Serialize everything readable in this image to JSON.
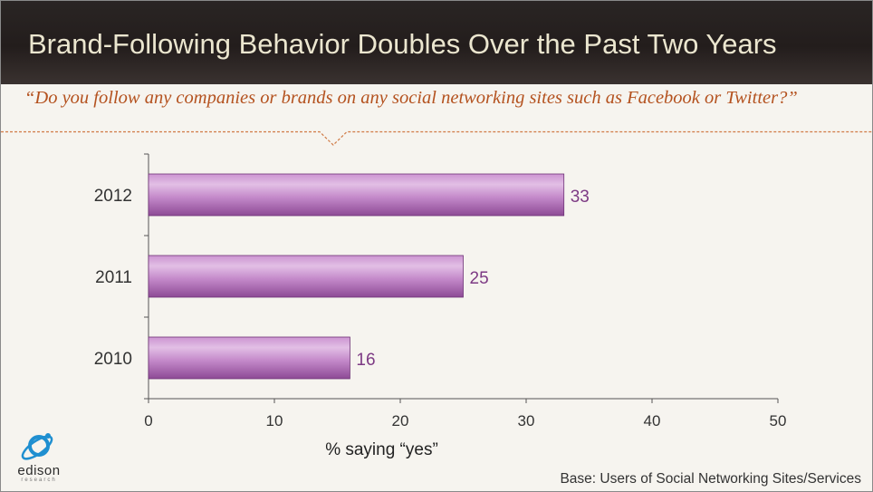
{
  "header": {
    "title": "Brand-Following Behavior Doubles Over the Past Two Years"
  },
  "question": "“Do you follow any companies or brands on any social networking sites such as Facebook or Twitter?”",
  "chart_data": {
    "type": "bar",
    "orientation": "horizontal",
    "categories": [
      "2012",
      "2011",
      "2010"
    ],
    "values": [
      33,
      25,
      16
    ],
    "data_labels": [
      "33",
      "25",
      "16"
    ],
    "xlabel": "% saying “yes”",
    "ylabel": "",
    "xlim": [
      0,
      50
    ],
    "xticks": [
      "0",
      "10",
      "20",
      "30",
      "40",
      "50"
    ],
    "grid": false,
    "bar_color": "#b877bf",
    "label_color": "#7d3a84"
  },
  "footer": {
    "base_note": "Base: Users of Social Networking Sites/Services"
  },
  "logo": {
    "name": "edison",
    "tagline": "research",
    "icon": "edison-orbit-logo",
    "color": "#1f8fd0"
  },
  "colors": {
    "header_bg": "#231d1c",
    "title_text": "#ebe6cf",
    "question_text": "#b4521f",
    "divider": "#d07a45"
  }
}
